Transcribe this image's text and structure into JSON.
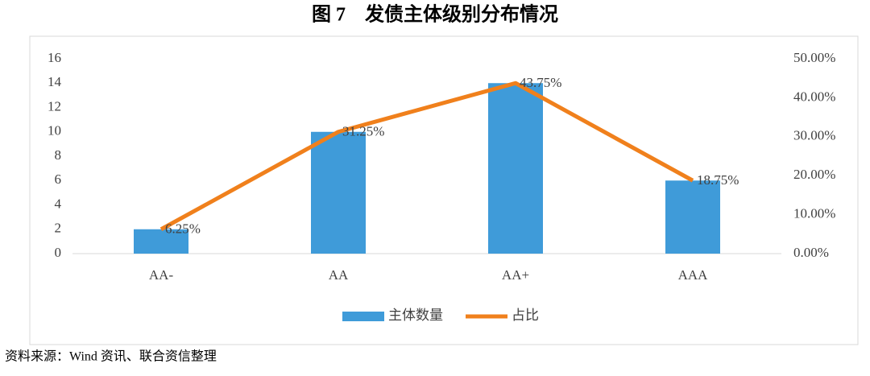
{
  "chart_data": {
    "type": "bar_line",
    "title": "图 7　发债主体级别分布情况",
    "categories": [
      "AA-",
      "AA",
      "AA+",
      "AAA"
    ],
    "series": [
      {
        "name": "主体数量",
        "type": "bar",
        "color": "#3f9bd9",
        "values": [
          2,
          10,
          14,
          6
        ]
      },
      {
        "name": "占比",
        "type": "line",
        "axis": "y2",
        "color": "#f0801c",
        "values": [
          6.25,
          31.25,
          43.75,
          18.75
        ],
        "value_labels": [
          "6.25%",
          "31.25%",
          "43.75%",
          "18.75%"
        ]
      }
    ],
    "ylim": [
      0,
      16
    ],
    "yticks": [
      0,
      2,
      4,
      6,
      8,
      10,
      12,
      14,
      16
    ],
    "y2lim": [
      0,
      50
    ],
    "y2ticks": [
      {
        "value": 0,
        "label": "0.00%"
      },
      {
        "value": 10,
        "label": "10.00%"
      },
      {
        "value": 20,
        "label": "20.00%"
      },
      {
        "value": 30,
        "label": "30.00%"
      },
      {
        "value": 40,
        "label": "40.00%"
      },
      {
        "value": 50,
        "label": "50.00%"
      }
    ],
    "legend": "bottom",
    "source": "资料来源：Wind 资讯、联合资信整理"
  }
}
